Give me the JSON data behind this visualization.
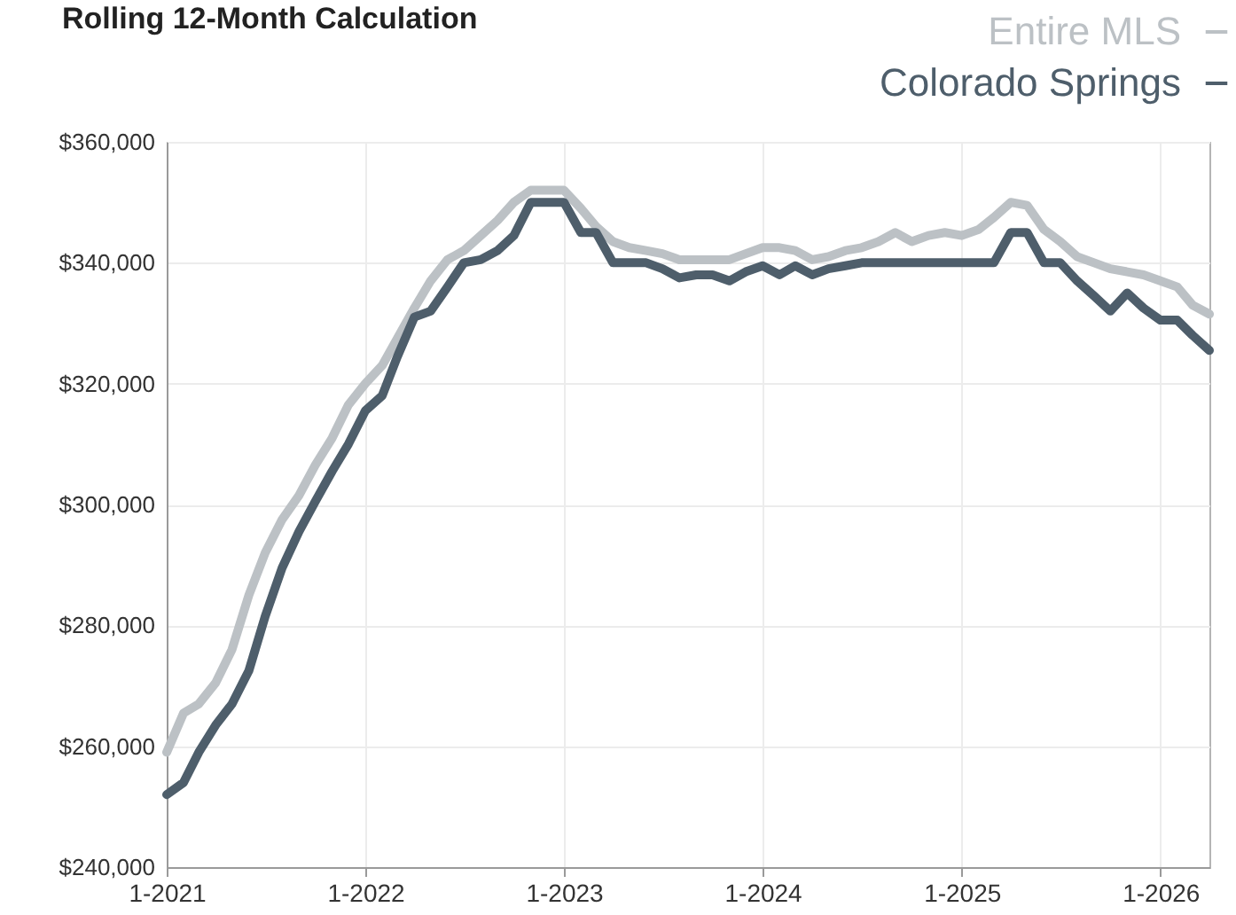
{
  "chart_data": {
    "type": "line",
    "title": "Rolling 12-Month Calculation",
    "x": [
      "2021-01",
      "2021-02",
      "2021-03",
      "2021-04",
      "2021-05",
      "2021-06",
      "2021-07",
      "2021-08",
      "2021-09",
      "2021-10",
      "2021-11",
      "2021-12",
      "2022-01",
      "2022-02",
      "2022-03",
      "2022-04",
      "2022-05",
      "2022-06",
      "2022-07",
      "2022-08",
      "2022-09",
      "2022-10",
      "2022-11",
      "2022-12",
      "2023-01",
      "2023-02",
      "2023-03",
      "2023-04",
      "2023-05",
      "2023-06",
      "2023-07",
      "2023-08",
      "2023-09",
      "2023-10",
      "2023-11",
      "2023-12",
      "2024-01",
      "2024-02",
      "2024-03",
      "2024-04",
      "2024-05",
      "2024-06",
      "2024-07",
      "2024-08",
      "2024-09",
      "2024-10",
      "2024-11",
      "2024-12",
      "2025-01",
      "2025-02",
      "2025-03",
      "2025-04",
      "2025-05",
      "2025-06",
      "2025-07",
      "2025-08",
      "2025-09",
      "2025-10",
      "2025-11",
      "2025-12",
      "2026-01",
      "2026-02",
      "2026-03",
      "2026-04"
    ],
    "series": [
      {
        "name": "Entire MLS",
        "color": "#bcc1c5",
        "values": [
          259000,
          265500,
          267000,
          270500,
          276000,
          285000,
          292000,
          297500,
          301500,
          306500,
          311000,
          316500,
          320000,
          323000,
          327500,
          332500,
          337000,
          340500,
          342000,
          344500,
          347000,
          350000,
          352000,
          352000,
          352000,
          349000,
          346000,
          343500,
          342500,
          342000,
          341500,
          340500,
          340500,
          340500,
          340500,
          341500,
          342500,
          342500,
          342000,
          340500,
          341000,
          342000,
          342500,
          343500,
          345000,
          343500,
          344500,
          345000,
          344500,
          345500,
          347500,
          350000,
          349500,
          345500,
          343500,
          341000,
          340000,
          339000,
          338500,
          338000,
          337000,
          336000,
          333000,
          331500
        ]
      },
      {
        "name": "Colorado Springs",
        "color": "#4e5e6b",
        "values": [
          252000,
          254000,
          259000,
          263500,
          267000,
          272500,
          281500,
          289500,
          295500,
          300500,
          305500,
          310000,
          315500,
          318000,
          324500,
          331000,
          332000,
          336000,
          340000,
          340500,
          342000,
          344500,
          350000,
          350000,
          350000,
          345000,
          345000,
          340000,
          340000,
          340000,
          339000,
          337500,
          338000,
          338000,
          337000,
          338500,
          339500,
          338000,
          339500,
          338000,
          339000,
          339500,
          340000,
          340000,
          340000,
          340000,
          340000,
          340000,
          340000,
          340000,
          340000,
          345000,
          345000,
          340000,
          340000,
          337000,
          334500,
          332000,
          335000,
          332500,
          330500,
          330500,
          328000,
          325500
        ]
      }
    ],
    "xlim": [
      "2021-01",
      "2026-04"
    ],
    "xticks": [
      {
        "value": "2021-01",
        "label": "1-2021"
      },
      {
        "value": "2022-01",
        "label": "1-2022"
      },
      {
        "value": "2023-01",
        "label": "1-2023"
      },
      {
        "value": "2024-01",
        "label": "1-2024"
      },
      {
        "value": "2025-01",
        "label": "1-2025"
      },
      {
        "value": "2026-01",
        "label": "1-2026"
      }
    ],
    "ylim": [
      240000,
      360000
    ],
    "yticks": [
      {
        "value": 240000,
        "label": "$240,000"
      },
      {
        "value": 260000,
        "label": "$260,000"
      },
      {
        "value": 280000,
        "label": "$280,000"
      },
      {
        "value": 300000,
        "label": "$300,000"
      },
      {
        "value": 320000,
        "label": "$320,000"
      },
      {
        "value": 340000,
        "label": "$340,000"
      },
      {
        "value": 360000,
        "label": "$360,000"
      }
    ],
    "grid": true,
    "legend": "top right"
  }
}
